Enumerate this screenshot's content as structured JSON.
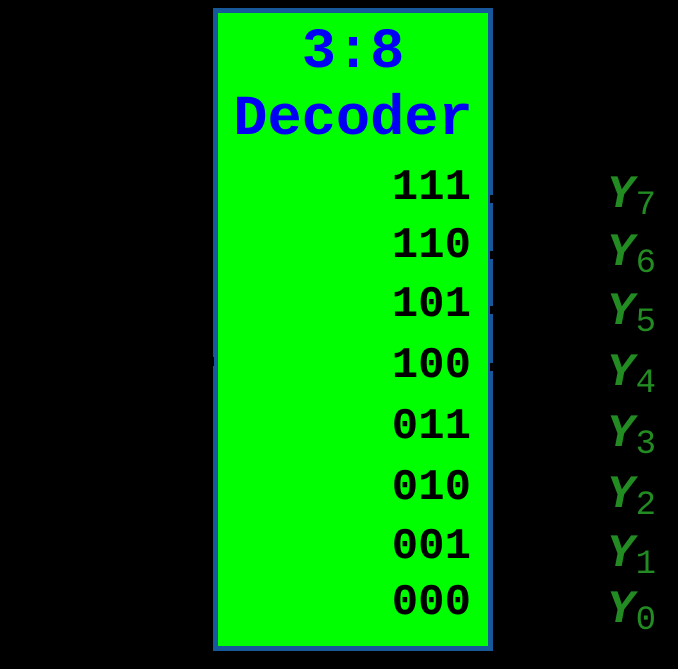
{
  "diagram": {
    "title_line1": "3:8",
    "title_line2": "Decoder",
    "rows": [
      {
        "code": "111",
        "output_name": "Y",
        "output_sub": "7"
      },
      {
        "code": "110",
        "output_name": "Y",
        "output_sub": "6"
      },
      {
        "code": "101",
        "output_name": "Y",
        "output_sub": "5"
      },
      {
        "code": "100",
        "output_name": "Y",
        "output_sub": "4"
      },
      {
        "code": "011",
        "output_name": "Y",
        "output_sub": "3"
      },
      {
        "code": "010",
        "output_name": "Y",
        "output_sub": "2"
      },
      {
        "code": "001",
        "output_name": "Y",
        "output_sub": "1"
      },
      {
        "code": "000",
        "output_name": "Y",
        "output_sub": "0"
      }
    ],
    "colors": {
      "background": "#000000",
      "box_fill": "#00FF00",
      "box_border": "#16589A",
      "title_text": "#0000F5",
      "code_text": "#000000",
      "output_text": "#228B22"
    }
  }
}
